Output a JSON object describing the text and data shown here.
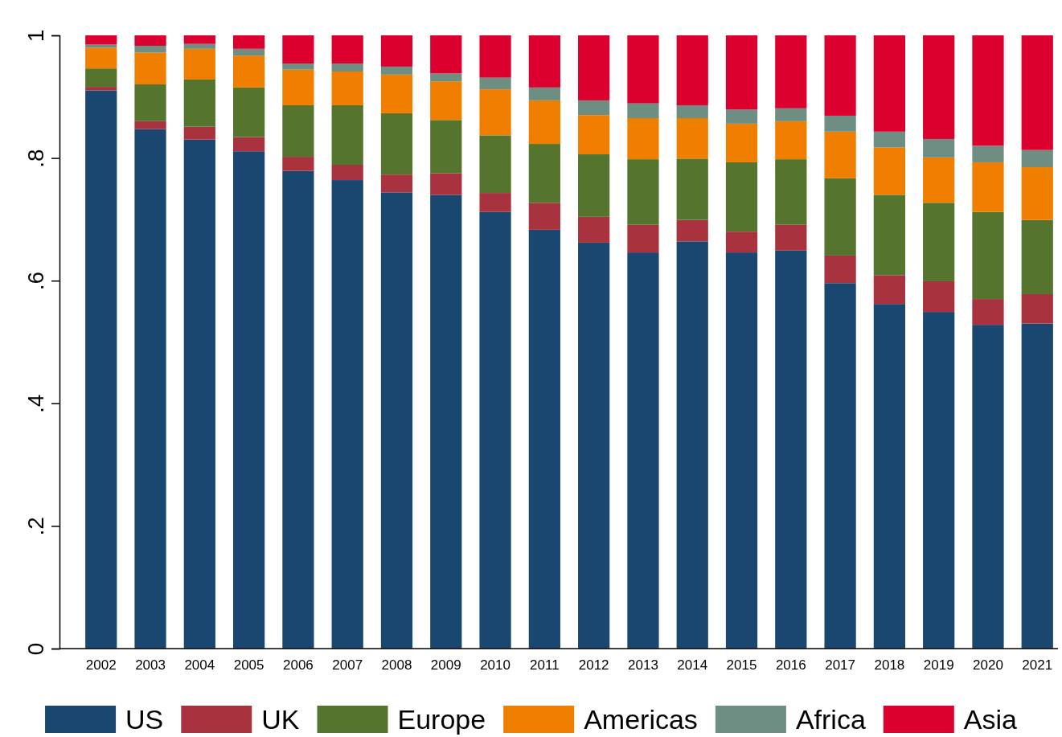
{
  "chart_data": {
    "type": "bar",
    "stacked": true,
    "categories": [
      "2002",
      "2003",
      "2004",
      "2005",
      "2006",
      "2007",
      "2008",
      "2009",
      "2010",
      "2011",
      "2012",
      "2013",
      "2014",
      "2015",
      "2016",
      "2017",
      "2018",
      "2019",
      "2020",
      "2021"
    ],
    "series": [
      {
        "name": "US",
        "color": "#1a476f",
        "values": [
          0.91,
          0.847,
          0.83,
          0.811,
          0.779,
          0.764,
          0.744,
          0.74,
          0.712,
          0.683,
          0.662,
          0.646,
          0.664,
          0.646,
          0.649,
          0.596,
          0.562,
          0.549,
          0.528,
          0.53
        ]
      },
      {
        "name": "UK",
        "color": "#a8333f",
        "values": [
          0.006,
          0.013,
          0.021,
          0.023,
          0.023,
          0.025,
          0.029,
          0.035,
          0.031,
          0.044,
          0.042,
          0.045,
          0.035,
          0.034,
          0.042,
          0.045,
          0.047,
          0.05,
          0.042,
          0.048
        ]
      },
      {
        "name": "Europe",
        "color": "#55752f",
        "values": [
          0.03,
          0.06,
          0.077,
          0.081,
          0.084,
          0.097,
          0.1,
          0.087,
          0.094,
          0.096,
          0.102,
          0.107,
          0.1,
          0.113,
          0.107,
          0.126,
          0.131,
          0.128,
          0.142,
          0.121
        ]
      },
      {
        "name": "Americas",
        "color": "#f07f00",
        "values": [
          0.034,
          0.052,
          0.05,
          0.052,
          0.058,
          0.055,
          0.063,
          0.063,
          0.075,
          0.071,
          0.064,
          0.067,
          0.066,
          0.063,
          0.062,
          0.076,
          0.077,
          0.074,
          0.081,
          0.086
        ]
      },
      {
        "name": "Africa",
        "color": "#6e8e84",
        "values": [
          0.005,
          0.011,
          0.008,
          0.011,
          0.01,
          0.013,
          0.013,
          0.013,
          0.019,
          0.021,
          0.024,
          0.024,
          0.021,
          0.023,
          0.021,
          0.026,
          0.026,
          0.03,
          0.027,
          0.028
        ]
      },
      {
        "name": "Asia",
        "color": "#dc002f",
        "values": [
          0.015,
          0.017,
          0.014,
          0.022,
          0.046,
          0.046,
          0.051,
          0.062,
          0.069,
          0.085,
          0.106,
          0.111,
          0.114,
          0.121,
          0.119,
          0.131,
          0.157,
          0.169,
          0.18,
          0.187
        ]
      }
    ],
    "ylim": [
      0,
      1
    ],
    "yticks": [
      0,
      {
        "value": 0.2,
        "label": ".2"
      },
      {
        "value": 0.4,
        "label": ".4"
      },
      {
        "value": 0.6,
        "label": ".6"
      },
      {
        "value": 0.8,
        "label": ".8"
      },
      1
    ],
    "legend": "bottom"
  }
}
